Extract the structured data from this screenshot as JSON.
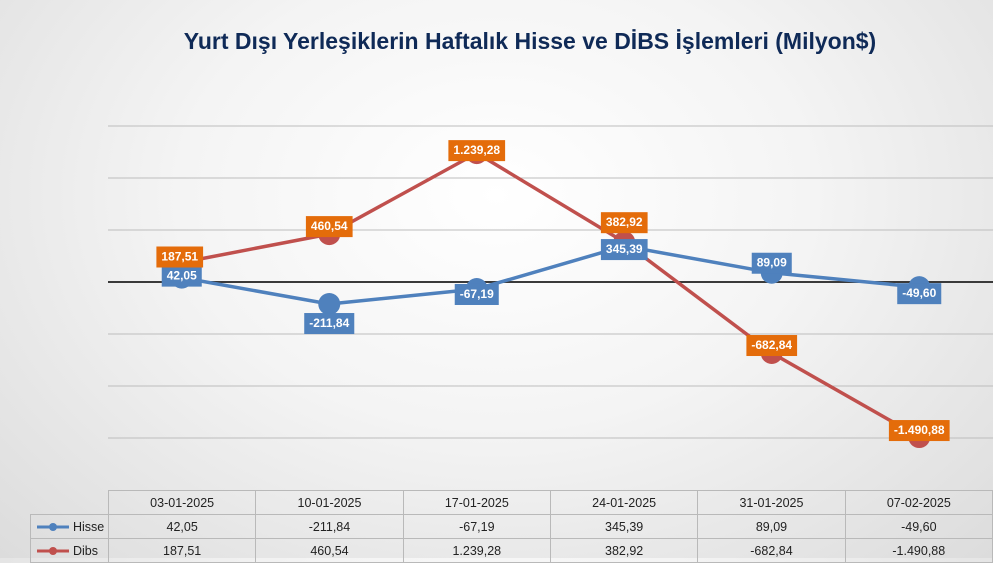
{
  "chart_data": {
    "type": "line",
    "title": "Yurt Dışı Yerleşiklerin Haftalık Hisse ve DİBS İşlemleri (Milyon$)",
    "categories": [
      "03-01-2025",
      "10-01-2025",
      "17-01-2025",
      "24-01-2025",
      "31-01-2025",
      "07-02-2025"
    ],
    "series": [
      {
        "name": "Hisse",
        "color": "#4f81bd",
        "label_color": "#4f81bd",
        "values": [
          42.05,
          -211.84,
          -67.19,
          345.39,
          89.09,
          -49.6
        ],
        "labels": [
          "42,05",
          "-211,84",
          "-67,19",
          "345,39",
          "89,09",
          "-49,60"
        ]
      },
      {
        "name": "Dibs",
        "color": "#c0504d",
        "label_color": "#e46c0a",
        "values": [
          187.51,
          460.54,
          1239.28,
          382.92,
          -682.84,
          -1490.88
        ],
        "labels": [
          "187,51",
          "460,54",
          "1.239,28",
          "382,92",
          "-682,84",
          "-1.490,88"
        ]
      }
    ],
    "ylim": [
      -1500,
      1500
    ],
    "ygrid_step": 500,
    "grid": true,
    "legend": "data-table"
  }
}
